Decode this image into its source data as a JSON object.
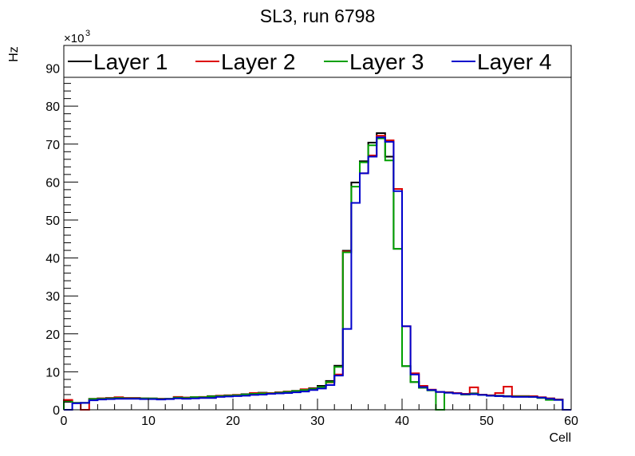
{
  "chart_data": {
    "type": "line",
    "style": "step-histogram",
    "title": "SL3, run 6798",
    "xlabel": "Cell",
    "ylabel": "Hz",
    "y_multiplier_label": "×10",
    "y_multiplier_exp": "3",
    "xlim": [
      0,
      60
    ],
    "ylim": [
      0,
      96
    ],
    "x_ticks": [
      0,
      10,
      20,
      30,
      40,
      50,
      60
    ],
    "x_tick_labels": [
      "0",
      "10",
      "20",
      "30",
      "40",
      "50",
      "60"
    ],
    "y_ticks": [
      0,
      10,
      20,
      30,
      40,
      50,
      60,
      70,
      80,
      90
    ],
    "y_tick_labels": [
      "0",
      "10",
      "20",
      "30",
      "40",
      "50",
      "60",
      "70",
      "80",
      "90"
    ],
    "grid": false,
    "legend_position": "top",
    "bin_width": 1,
    "series": [
      {
        "name": "Layer 1",
        "color": "#000000",
        "values": [
          2.4,
          1.8,
          1.8,
          2.9,
          3.0,
          3.1,
          3.2,
          3.1,
          3.1,
          3.0,
          2.9,
          2.9,
          2.9,
          3.3,
          3.2,
          3.3,
          3.3,
          3.6,
          3.7,
          3.8,
          3.9,
          4.1,
          4.3,
          4.5,
          4.4,
          4.6,
          4.8,
          5.0,
          5.3,
          5.7,
          6.3,
          7.6,
          11.6,
          41.9,
          59.9,
          65.5,
          70.4,
          72.9,
          66.7,
          42.4,
          11.5,
          7.3,
          5.8,
          5.2,
          4.7,
          4.6,
          4.4,
          4.2,
          4.3,
          4.0,
          3.8,
          3.7,
          3.6,
          3.6,
          3.6,
          3.5,
          3.2,
          3.0,
          2.7,
          0
        ]
      },
      {
        "name": "Layer 2",
        "color": "#dd0000",
        "values": [
          2.6,
          1.8,
          0,
          2.8,
          3.0,
          3.1,
          3.3,
          3.1,
          3.1,
          3.0,
          3.0,
          2.9,
          2.9,
          3.4,
          3.2,
          3.3,
          3.4,
          3.5,
          3.7,
          3.8,
          3.9,
          4.0,
          4.4,
          4.4,
          4.4,
          4.6,
          4.8,
          4.9,
          5.4,
          5.6,
          6.0,
          7.2,
          9.3,
          41.7,
          54.5,
          62.3,
          67.0,
          72.2,
          71.0,
          58.2,
          22.0,
          9.6,
          6.3,
          5.3,
          4.7,
          4.6,
          4.4,
          4.2,
          5.9,
          4.0,
          3.8,
          4.4,
          6.1,
          3.6,
          3.6,
          3.6,
          3.3,
          3.0,
          2.7,
          0
        ]
      },
      {
        "name": "Layer 3",
        "color": "#00a000",
        "values": [
          2.1,
          1.8,
          1.8,
          2.8,
          2.9,
          3.0,
          3.1,
          3.0,
          3.0,
          3.0,
          3.0,
          2.8,
          2.9,
          3.2,
          3.1,
          3.3,
          3.3,
          3.5,
          3.6,
          3.7,
          3.8,
          4.0,
          4.2,
          4.3,
          4.3,
          4.5,
          4.7,
          4.9,
          5.2,
          5.5,
          6.0,
          7.3,
          11.3,
          41.5,
          58.8,
          65.2,
          69.7,
          71.5,
          65.7,
          42.4,
          11.5,
          7.3,
          5.8,
          5.1,
          0,
          4.5,
          4.3,
          4.0,
          4.2,
          3.9,
          3.7,
          3.6,
          3.5,
          3.5,
          3.5,
          3.4,
          3.1,
          2.6,
          2.6,
          0
        ]
      },
      {
        "name": "Layer 4",
        "color": "#0000cc",
        "values": [
          0,
          1.7,
          1.8,
          2.5,
          2.7,
          2.8,
          2.9,
          2.9,
          2.9,
          2.8,
          2.8,
          2.7,
          2.8,
          3.0,
          2.9,
          3.0,
          3.1,
          3.1,
          3.4,
          3.5,
          3.6,
          3.7,
          3.9,
          4.0,
          4.2,
          4.3,
          4.4,
          4.6,
          4.8,
          5.2,
          5.6,
          6.5,
          9.0,
          21.3,
          54.5,
          62.3,
          66.7,
          71.8,
          70.6,
          57.6,
          22.0,
          9.3,
          6.0,
          5.2,
          4.7,
          4.5,
          4.3,
          4.1,
          4.1,
          3.9,
          3.7,
          3.6,
          3.5,
          3.4,
          3.4,
          3.4,
          3.2,
          2.9,
          2.6,
          0
        ]
      }
    ]
  }
}
